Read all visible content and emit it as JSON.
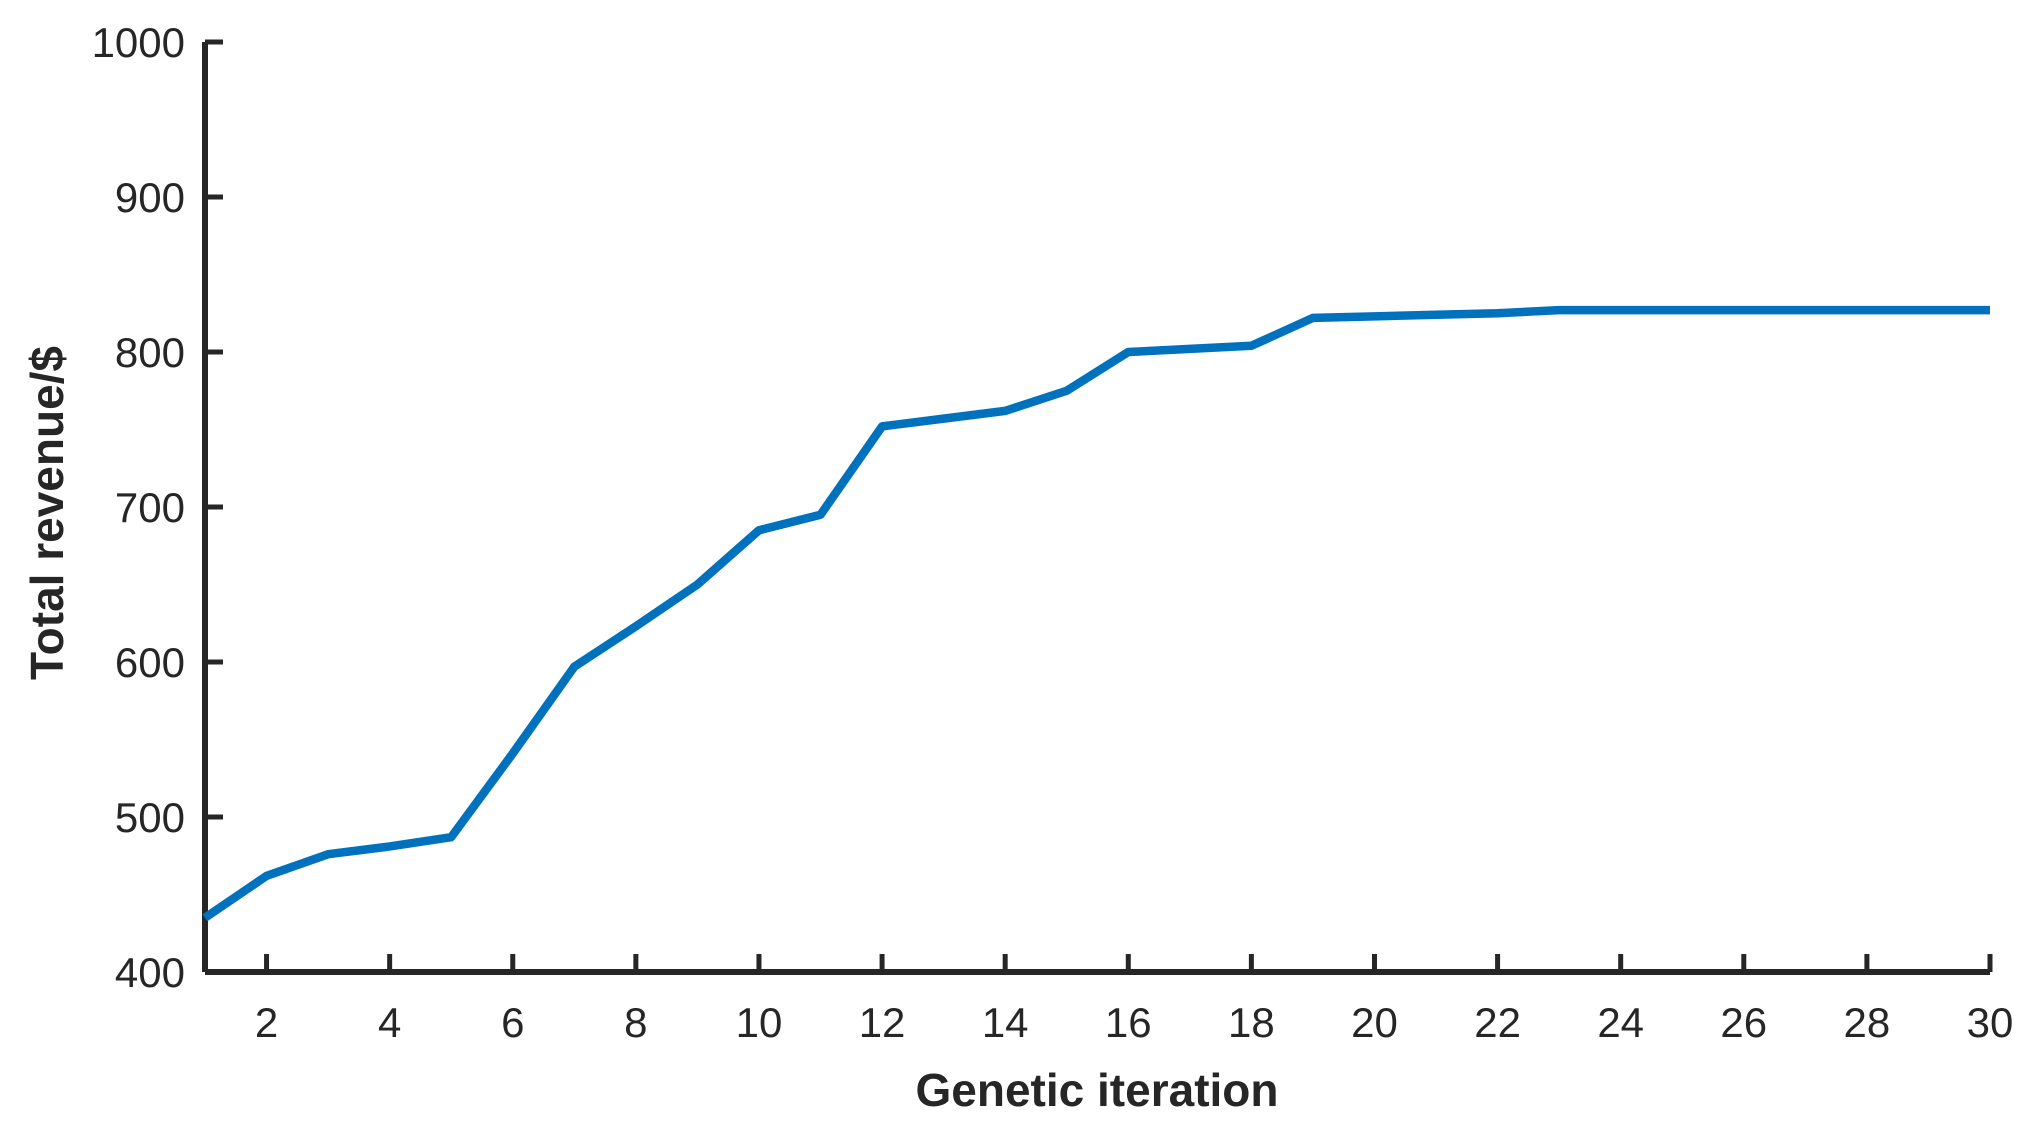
{
  "figure": {
    "background": "#ffffff",
    "axis_color": "#262626",
    "tick_label_color": "#262626"
  },
  "chart_data": {
    "type": "line",
    "title": "",
    "xlabel": "Genetic iteration",
    "ylabel": "Total revenue/$",
    "x": [
      1,
      2,
      3,
      4,
      5,
      6,
      7,
      8,
      9,
      10,
      11,
      12,
      13,
      14,
      15,
      16,
      17,
      18,
      19,
      20,
      21,
      22,
      23,
      24,
      25,
      26,
      27,
      28,
      29,
      30
    ],
    "y": [
      435,
      462,
      476,
      481,
      487,
      541,
      597,
      623,
      650,
      685,
      695,
      752,
      757,
      762,
      775,
      800,
      802,
      804,
      822,
      823,
      824,
      825,
      827,
      827,
      827,
      827,
      827,
      827,
      827,
      827
    ],
    "line_color": "#0072BD",
    "line_width": 8.5,
    "xlim": [
      1,
      30
    ],
    "ylim": [
      400,
      1000
    ],
    "x_ticks": [
      2,
      4,
      6,
      8,
      10,
      12,
      14,
      16,
      18,
      20,
      22,
      24,
      26,
      28,
      30
    ],
    "y_ticks": [
      400,
      500,
      600,
      700,
      800,
      900,
      1000
    ],
    "grid": false,
    "legend": null
  }
}
